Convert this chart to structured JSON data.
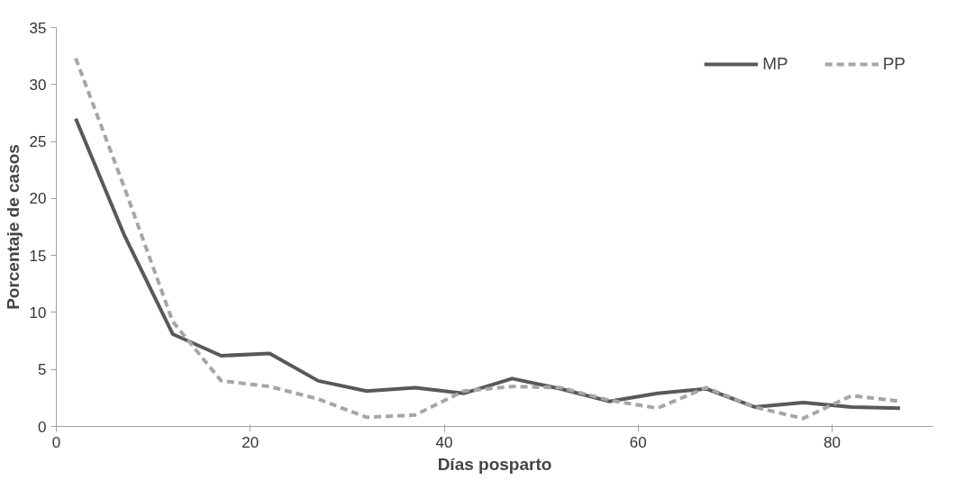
{
  "chart_data": {
    "type": "line",
    "xlabel": "Días posparto",
    "ylabel": "Porcentaje de casos",
    "x": [
      2,
      7,
      12,
      17,
      22,
      27,
      32,
      37,
      42,
      47,
      52,
      57,
      62,
      67,
      72,
      77,
      82,
      87
    ],
    "series": [
      {
        "name": "MP",
        "color": "#595959",
        "line_style": "solid",
        "values": [
          27.0,
          16.8,
          8.1,
          6.2,
          6.4,
          4.0,
          3.1,
          3.4,
          2.9,
          4.2,
          3.3,
          2.2,
          2.9,
          3.3,
          1.7,
          2.1,
          1.7,
          1.6
        ]
      },
      {
        "name": "PP",
        "color": "#a6a6a6",
        "line_style": "dashed",
        "values": [
          32.3,
          21,
          9.2,
          4.0,
          3.5,
          2.4,
          0.8,
          1.0,
          3.1,
          3.5,
          3.4,
          2.3,
          1.6,
          3.4,
          1.7,
          0.7,
          2.7,
          2.2
        ]
      }
    ],
    "xlim": [
      0,
      90.4
    ],
    "ylim": [
      0,
      35
    ],
    "xticks": [
      0,
      20,
      40,
      60,
      80
    ],
    "yticks": [
      0,
      5,
      10,
      15,
      20,
      25,
      30,
      35
    ],
    "grid": false,
    "legend": "top right",
    "marker": "none"
  }
}
